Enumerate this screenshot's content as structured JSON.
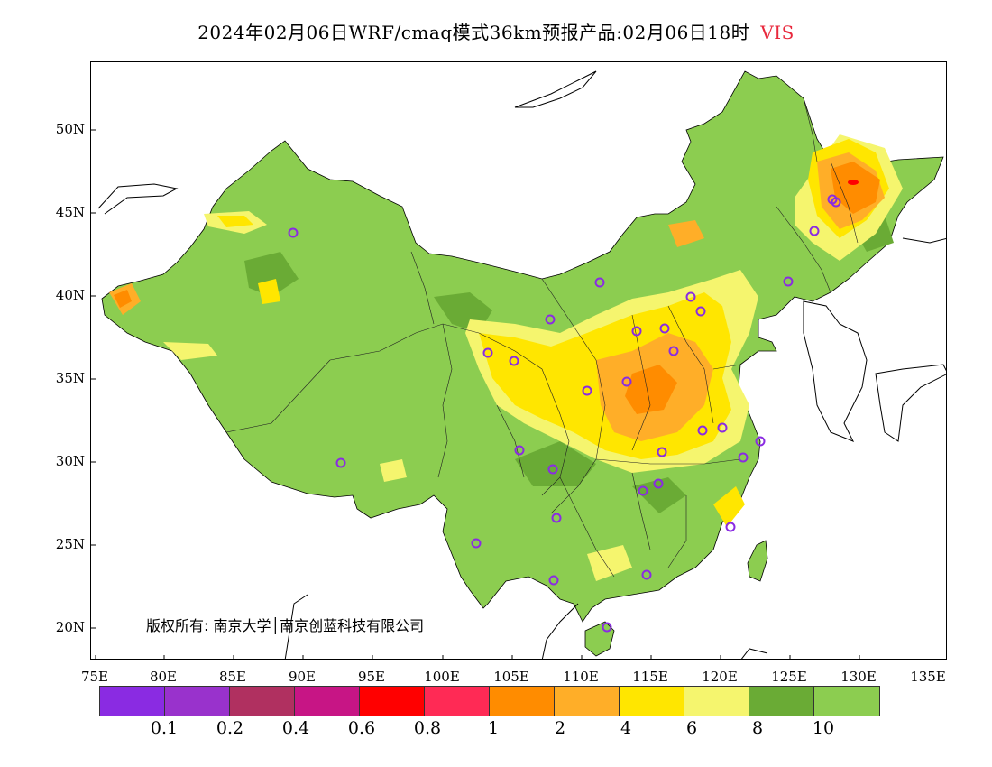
{
  "title": {
    "main": "2024年02月06日WRF/cmaq模式36km预报产品:02月06日18时",
    "variable": "VIS",
    "variable_color": "#e8283c"
  },
  "map": {
    "lat_labels": [
      "50N",
      "45N",
      "40N",
      "35N",
      "30N",
      "25N",
      "20N"
    ],
    "lon_labels": [
      "75E",
      "80E",
      "85E",
      "90E",
      "95E",
      "100E",
      "105E",
      "110E",
      "115E",
      "120E",
      "125E",
      "130E",
      "135E"
    ],
    "copyright": "版权所有: 南京大学│南京创蓝科技有限公司",
    "site_marker_color": "#8a2be2"
  },
  "legend": {
    "colors": [
      "#8a2be2",
      "#9932cc",
      "#b03060",
      "#c71585",
      "#ff0000",
      "#ff2a55",
      "#ff8c00",
      "#ffae28",
      "#ffe600",
      "#f5f56e",
      "#6aab35",
      "#8ccd50"
    ],
    "ticks": [
      "0.1",
      "0.2",
      "0.4",
      "0.6",
      "0.8",
      "1",
      "2",
      "4",
      "6",
      "8",
      "10"
    ]
  }
}
